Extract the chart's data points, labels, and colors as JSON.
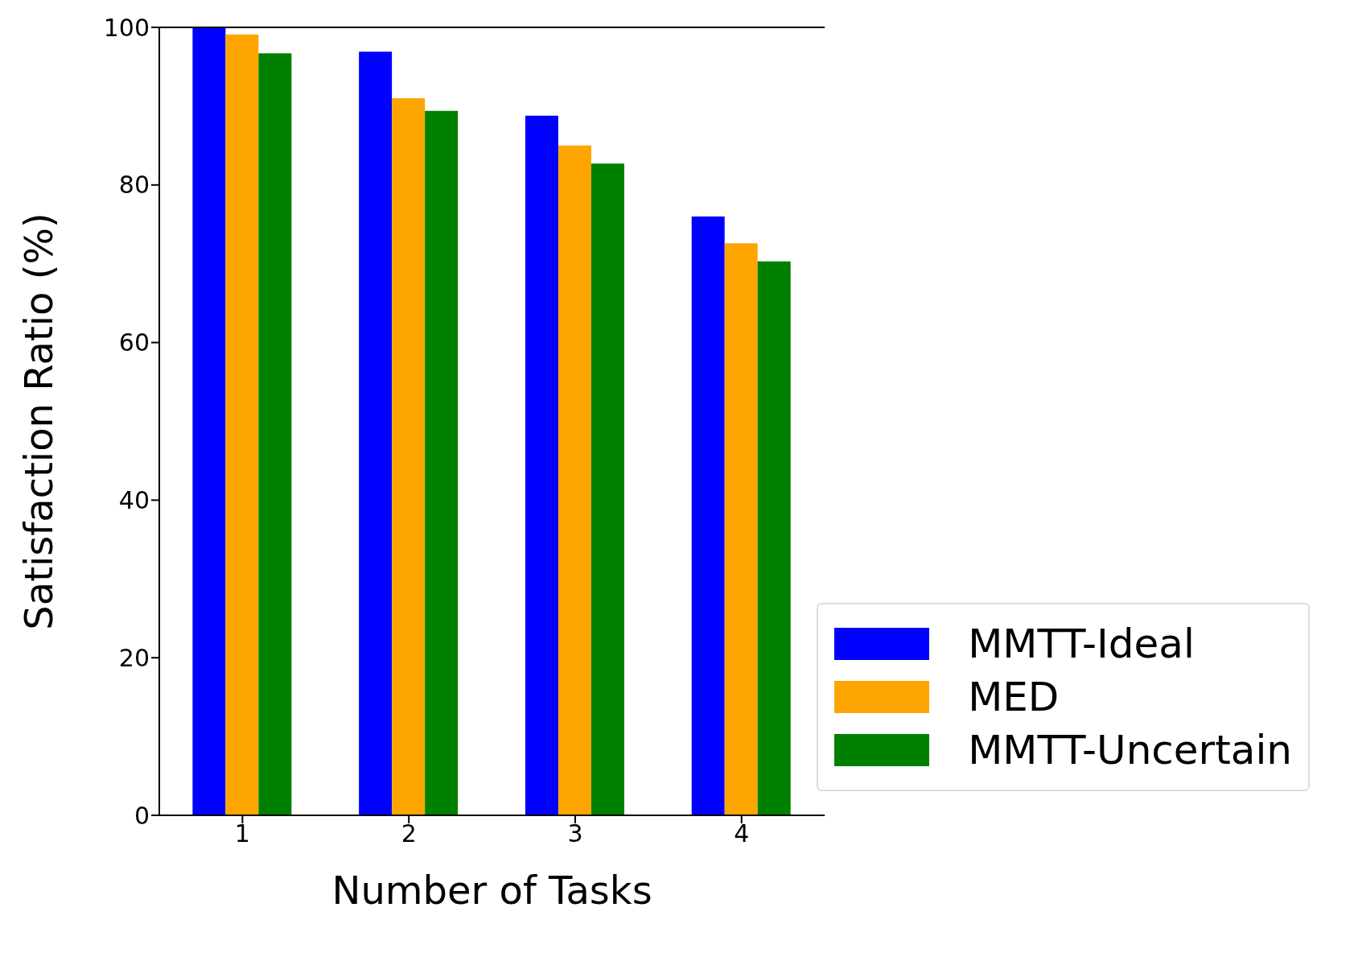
{
  "chart_data": {
    "type": "bar",
    "xlabel": "Number of Tasks",
    "ylabel": "Satisfaction Ratio (%)",
    "categories": [
      "1",
      "2",
      "3",
      "4"
    ],
    "series": [
      {
        "name": "MMTT-Ideal",
        "color": "#0000ff",
        "values": [
          100,
          96.9,
          88.8,
          76.0
        ]
      },
      {
        "name": "MED",
        "color": "#ffa500",
        "values": [
          99.1,
          91.0,
          85.0,
          72.6
        ]
      },
      {
        "name": "MMTT-Uncertain",
        "color": "#008000",
        "values": [
          96.7,
          89.4,
          82.7,
          70.3
        ]
      }
    ],
    "ylim": [
      0,
      100
    ],
    "yticks": [
      0,
      20,
      40,
      60,
      80,
      100
    ],
    "grid": false,
    "legend": "bottom right"
  }
}
